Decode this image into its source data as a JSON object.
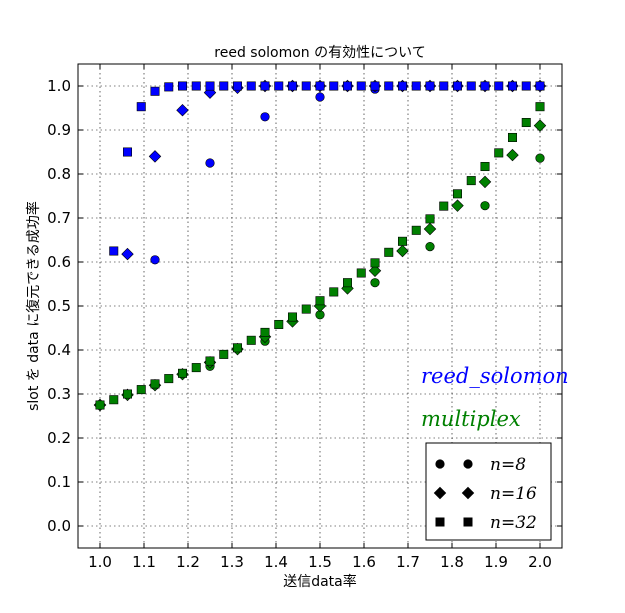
{
  "chart_data": {
    "type": "scatter",
    "title": "reed solomon の有効性について",
    "xlabel": "送信data率",
    "ylabel": "slot を data に復元できる成功率",
    "xlim": [
      0.95,
      2.05
    ],
    "ylim": [
      -0.05,
      1.05
    ],
    "xticks": [
      "1.0",
      "1.1",
      "1.2",
      "1.3",
      "1.4",
      "1.5",
      "1.6",
      "1.7",
      "1.8",
      "1.9",
      "2.0"
    ],
    "yticks": [
      "0.0",
      "0.1",
      "0.2",
      "0.3",
      "0.4",
      "0.5",
      "0.6",
      "0.7",
      "0.8",
      "0.9",
      "1.0"
    ],
    "grid": true,
    "legend_position": "lower-right",
    "annotations": [
      {
        "text": "reed_solomon",
        "color": "#0000ff"
      },
      {
        "text": "multiplex",
        "color": "#008000"
      }
    ],
    "legend": [
      {
        "label": "n=8",
        "marker": "circle"
      },
      {
        "label": "n=16",
        "marker": "diamond"
      },
      {
        "label": "n=32",
        "marker": "square"
      }
    ],
    "series": [
      {
        "group": "reed_solomon",
        "n": "8",
        "marker": "circle",
        "color": "#0000ff",
        "x": [
          1.0,
          1.125,
          1.25,
          1.375,
          1.5,
          1.625,
          1.75,
          1.875,
          2.0
        ],
        "y": [
          0.275,
          0.605,
          0.825,
          0.93,
          0.975,
          0.993,
          1.0,
          1.0,
          1.0
        ]
      },
      {
        "group": "reed_solomon",
        "n": "16",
        "marker": "diamond",
        "color": "#0000ff",
        "x": [
          1.0,
          1.0625,
          1.125,
          1.1875,
          1.25,
          1.3125,
          1.375,
          1.4375,
          1.5,
          1.5625,
          1.625,
          1.6875,
          1.75,
          1.8125,
          1.875,
          1.9375,
          2.0
        ],
        "y": [
          0.275,
          0.618,
          0.84,
          0.945,
          0.985,
          0.996,
          1.0,
          1.0,
          1.0,
          1.0,
          1.0,
          1.0,
          1.0,
          1.0,
          1.0,
          1.0,
          1.0
        ]
      },
      {
        "group": "reed_solomon",
        "n": "32",
        "marker": "square",
        "color": "#0000ff",
        "x": [
          1.0,
          1.03125,
          1.0625,
          1.09375,
          1.125,
          1.15625,
          1.1875,
          1.21875,
          1.25,
          1.28125,
          1.3125,
          1.34375,
          1.375,
          1.40625,
          1.4375,
          1.46875,
          1.5,
          1.53125,
          1.5625,
          1.59375,
          1.625,
          1.65625,
          1.6875,
          1.71875,
          1.75,
          1.78125,
          1.8125,
          1.84375,
          1.875,
          1.90625,
          1.9375,
          1.96875,
          2.0
        ],
        "y": [
          0.275,
          0.625,
          0.85,
          0.953,
          0.988,
          0.998,
          1.0,
          1.0,
          1.0,
          1.0,
          1.0,
          1.0,
          1.0,
          1.0,
          1.0,
          1.0,
          1.0,
          1.0,
          1.0,
          1.0,
          1.0,
          1.0,
          1.0,
          1.0,
          1.0,
          1.0,
          1.0,
          1.0,
          1.0,
          1.0,
          1.0,
          1.0,
          1.0
        ]
      },
      {
        "group": "multiplex",
        "n": "8",
        "marker": "circle",
        "color": "#008000",
        "x": [
          1.0,
          1.125,
          1.25,
          1.375,
          1.5,
          1.625,
          1.75,
          1.875,
          2.0
        ],
        "y": [
          0.275,
          0.32,
          0.363,
          0.42,
          0.48,
          0.553,
          0.635,
          0.728,
          0.836
        ]
      },
      {
        "group": "multiplex",
        "n": "16",
        "marker": "diamond",
        "color": "#008000",
        "x": [
          1.0,
          1.0625,
          1.125,
          1.1875,
          1.25,
          1.3125,
          1.375,
          1.4375,
          1.5,
          1.5625,
          1.625,
          1.6875,
          1.75,
          1.8125,
          1.875,
          1.9375,
          2.0
        ],
        "y": [
          0.275,
          0.298,
          0.32,
          0.345,
          0.372,
          0.402,
          0.43,
          0.465,
          0.5,
          0.54,
          0.58,
          0.625,
          0.675,
          0.728,
          0.782,
          0.843,
          0.91
        ]
      },
      {
        "group": "multiplex",
        "n": "32",
        "marker": "square",
        "color": "#008000",
        "x": [
          1.0,
          1.03125,
          1.0625,
          1.09375,
          1.125,
          1.15625,
          1.1875,
          1.21875,
          1.25,
          1.28125,
          1.3125,
          1.34375,
          1.375,
          1.40625,
          1.4375,
          1.46875,
          1.5,
          1.53125,
          1.5625,
          1.59375,
          1.625,
          1.65625,
          1.6875,
          1.71875,
          1.75,
          1.78125,
          1.8125,
          1.84375,
          1.875,
          1.90625,
          1.9375,
          1.96875,
          2.0
        ],
        "y": [
          0.275,
          0.287,
          0.3,
          0.31,
          0.323,
          0.335,
          0.347,
          0.36,
          0.375,
          0.39,
          0.405,
          0.422,
          0.44,
          0.458,
          0.475,
          0.493,
          0.512,
          0.532,
          0.553,
          0.575,
          0.598,
          0.622,
          0.647,
          0.672,
          0.698,
          0.727,
          0.755,
          0.785,
          0.817,
          0.848,
          0.883,
          0.917,
          0.953
        ]
      }
    ]
  }
}
